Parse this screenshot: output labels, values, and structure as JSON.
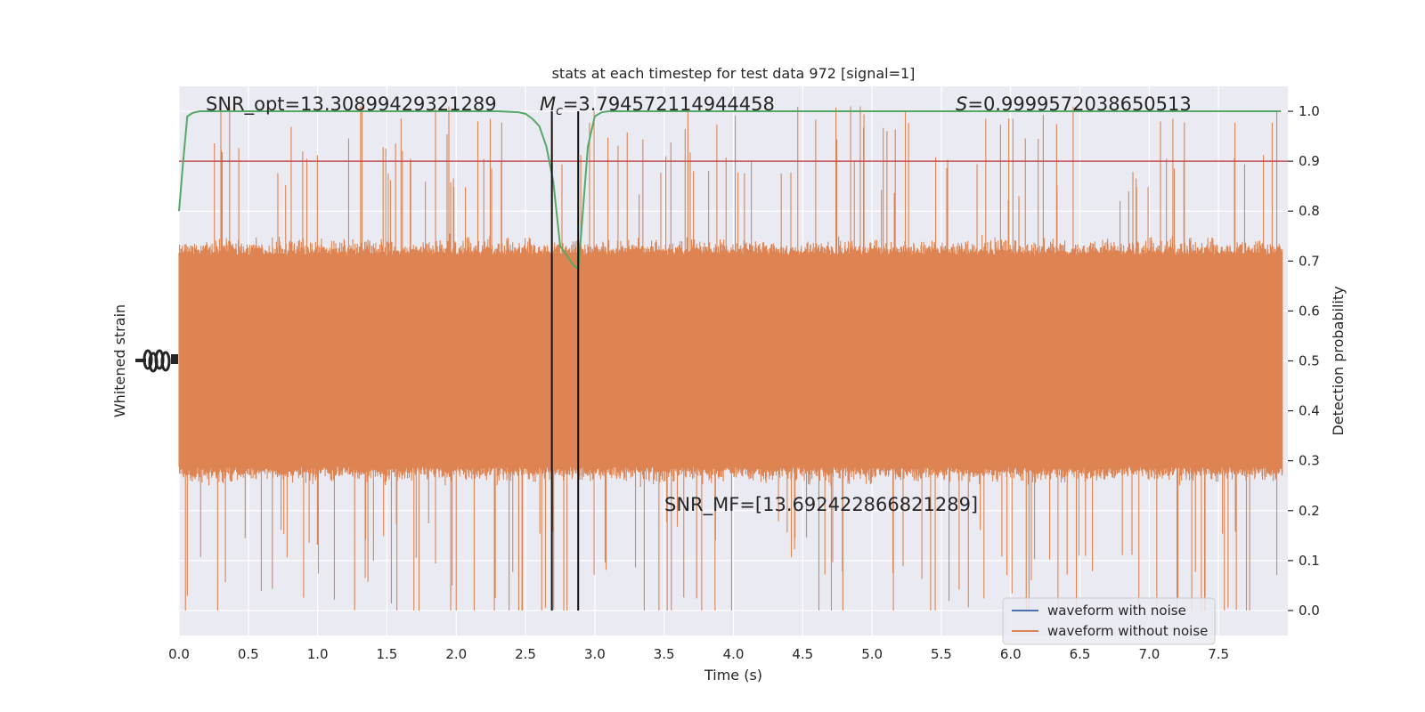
{
  "chart_data": {
    "type": "line",
    "title": "stats at each timestep for test data 972 [signal=1]",
    "xlabel": "Time (s)",
    "ylabel_left": "Whitened strain",
    "ylabel_right": "Detection probability",
    "xlim": [
      0.0,
      8.0
    ],
    "ylim_right": [
      -0.05,
      1.05
    ],
    "x_ticks": [
      "0.0",
      "0.5",
      "1.0",
      "1.5",
      "2.0",
      "2.5",
      "3.0",
      "3.5",
      "4.0",
      "4.5",
      "5.0",
      "5.5",
      "6.0",
      "6.5",
      "7.0",
      "7.5"
    ],
    "x_tick_values": [
      0.0,
      0.5,
      1.0,
      1.5,
      2.0,
      2.5,
      3.0,
      3.5,
      4.0,
      4.5,
      5.0,
      5.5,
      6.0,
      6.5,
      7.0,
      7.5
    ],
    "y_right_ticks": [
      "0.0",
      "0.1",
      "0.2",
      "0.3",
      "0.4",
      "0.5",
      "0.6",
      "0.7",
      "0.8",
      "0.9",
      "1.0"
    ],
    "y_right_tick_values": [
      0.0,
      0.1,
      0.2,
      0.3,
      0.4,
      0.5,
      0.6,
      0.7,
      0.8,
      0.9,
      1.0
    ],
    "grid": true,
    "legend_position": "bottom-right",
    "annotations": {
      "snr_opt": "SNR_opt=13.30899429321289",
      "mc_symbol": "M",
      "mc_sub": "c",
      "mc_value": "=3.794572114944458",
      "s_symbol": "S",
      "s_value": "=0.9999572038650513",
      "snr_mf": "SNR_MF=[13.69242286682128​9]"
    },
    "threshold": 0.9,
    "vertical_markers": [
      2.69,
      2.88
    ],
    "series": [
      {
        "name": "waveform with noise",
        "color": "#4c72b0"
      },
      {
        "name": "waveform without noise",
        "color": "#dd8452",
        "band_center": 0.5,
        "band_half_width": 0.23
      },
      {
        "color": "#55a868",
        "x": [
          0.0,
          0.03,
          0.06,
          0.1,
          0.15,
          0.3,
          0.5,
          1.0,
          1.5,
          2.0,
          2.3,
          2.45,
          2.5,
          2.55,
          2.6,
          2.65,
          2.7,
          2.75,
          2.8,
          2.85,
          2.88,
          2.9,
          2.95,
          3.0,
          3.05,
          3.1,
          3.2,
          3.5,
          4.0,
          5.0,
          6.0,
          7.0,
          7.95
        ],
        "y": [
          0.8,
          0.9,
          0.99,
          0.997,
          1.0,
          1.0,
          1.0,
          1.0,
          1.0,
          1.0,
          1.0,
          0.998,
          0.995,
          0.985,
          0.97,
          0.93,
          0.86,
          0.73,
          0.71,
          0.69,
          0.685,
          0.75,
          0.93,
          0.99,
          0.998,
          1.0,
          1.0,
          1.0,
          1.0,
          1.0,
          1.0,
          1.0,
          1.0
        ]
      },
      {
        "color": "#c44e52",
        "value": 0.9
      }
    ]
  }
}
